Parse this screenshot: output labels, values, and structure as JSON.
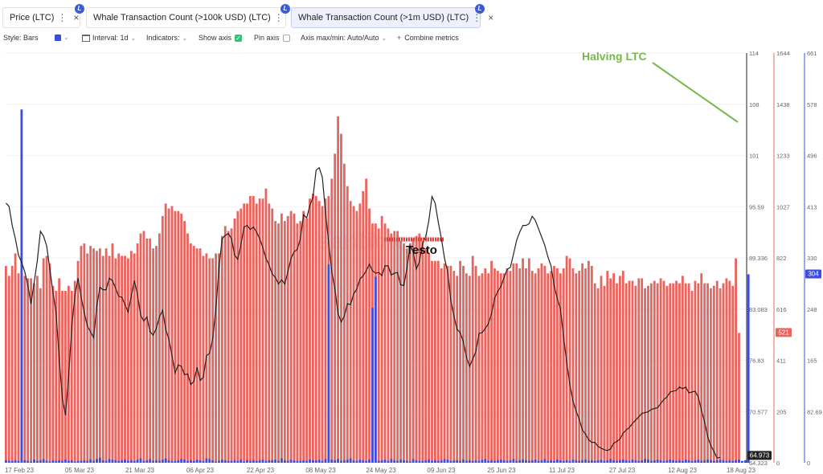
{
  "tabs": [
    {
      "label": "Price (LTC)",
      "color": "#222222",
      "badge": "L",
      "active": false
    },
    {
      "label": "Whale Transaction Count (>100k USD) (LTC)",
      "color": "#e8645e",
      "badge": "L",
      "active": false
    },
    {
      "label": "Whale Transaction Count (>1m USD) (LTC)",
      "color": "#3b4ee0",
      "badge": "L",
      "active": true
    }
  ],
  "toolbar": {
    "style_label": "Style: Bars",
    "interval_label": "Interval: 1d",
    "indicators_label": "Indicators:",
    "show_axis_label": "Show axis",
    "pin_axis_label": "Pin axis",
    "axis_label": "Axis max/min: Auto/Auto",
    "combine_label": "Combine metrics",
    "plus": "+"
  },
  "chart_data": {
    "type": "bar",
    "x_ticks": [
      "17 Feb 23",
      "05 Mar 23",
      "21 Mar 23",
      "06 Apr 23",
      "22 Apr 23",
      "08 May 23",
      "24 May 23",
      "09 Jun 23",
      "25 Jun 23",
      "11 Jul 23",
      "27 Jul 23",
      "12 Aug 23",
      "18 Aug 23"
    ],
    "axes": {
      "price": {
        "ticks": [
          "114",
          "108",
          "101",
          "95.59",
          "89.336",
          "83.083",
          "76.83",
          "70.577",
          "64.323"
        ],
        "min": 64.323,
        "max": 114,
        "current": "64.973",
        "color": "#222222"
      },
      "whale_100k": {
        "ticks": [
          "1644",
          "1438",
          "1233",
          "1027",
          "822",
          "616",
          "411",
          "205",
          "0"
        ],
        "min": 0,
        "max": 1644,
        "current": "521",
        "color": "#e8645e"
      },
      "whale_1m": {
        "ticks": [
          "661",
          "578",
          "496",
          "413",
          "330",
          "248",
          "165",
          "82.69",
          "0"
        ],
        "min": 0,
        "max": 661,
        "current": "304",
        "color": "#3b4ee0"
      }
    },
    "series": [
      {
        "name": "Price (LTC)",
        "type": "line",
        "color": "#222222",
        "values": [
          95.8,
          95.4,
          93.1,
          91.5,
          89.5,
          88.6,
          87.5,
          85.8,
          83.6,
          86.2,
          88.8,
          92.4,
          91.8,
          90.6,
          87.8,
          85,
          82.5,
          76.9,
          72.1,
          70.1,
          74.8,
          80.8,
          84.6,
          86.7,
          84.4,
          82.5,
          80.9,
          80.2,
          79.5,
          83.3,
          85.6,
          85.3,
          85.3,
          86.7,
          86.4,
          85.5,
          84.5,
          84.4,
          83.5,
          82.6,
          84.5,
          86.4,
          84.7,
          82.2,
          81.5,
          82,
          80.2,
          79.8,
          80.6,
          82,
          82.8,
          80.5,
          79.3,
          77.3,
          75.2,
          76.2,
          76,
          75,
          75.1,
          73.8,
          74.2,
          75.9,
          74.3,
          74.7,
          77.3,
          77.6,
          79.4,
          83,
          88,
          91.5,
          91.9,
          92.1,
          91.5,
          89.5,
          89,
          90.7,
          92.9,
          93.1,
          92.6,
          92.9,
          92.3,
          91.5,
          90.4,
          89.1,
          88.3,
          87.2,
          86.8,
          86,
          86.5,
          86,
          87.5,
          89.1,
          89.9,
          90.2,
          91.5,
          94.4,
          94,
          95.5,
          96.5,
          99.8,
          100.1,
          98.9,
          94.7,
          91,
          87.5,
          85.4,
          82.4,
          81.4,
          82.1,
          83.6,
          83.5,
          84.8,
          85.4,
          86.6,
          87,
          87.6,
          88.4,
          87.6,
          87.3,
          87.4,
          87,
          88.2,
          88.2,
          87.1,
          87.3,
          87.4,
          85.9,
          85.8,
          87.9,
          90.6,
          89.9,
          87.8,
          88.7,
          90.9,
          91.7,
          93.7,
          96.6,
          95.8,
          93.5,
          91.5,
          89.1,
          87.5,
          84,
          82.1,
          80.5,
          80.1,
          79,
          77.1,
          76,
          76.9,
          77.8,
          80,
          80.1,
          80.6,
          81.2,
          82.4,
          84.3,
          85.1,
          85.7,
          86.8,
          87.8,
          88,
          89.6,
          91.3,
          92.3,
          93.1,
          93.1,
          93.3,
          94.2,
          93.7,
          92.7,
          91.7,
          90.7,
          89.3,
          88.2,
          85.8,
          84.2,
          83,
          79.6,
          76.5,
          73.8,
          71.8,
          70.6,
          69.6,
          68.3,
          67.8,
          67.1,
          66.8,
          66.8,
          66.3,
          66.1,
          65.9,
          65.8,
          66,
          66.7,
          66.9,
          67.2,
          67.9,
          68.3,
          68.6,
          69.1,
          69.5,
          69.9,
          70.3,
          70.4,
          70.5,
          70.8,
          70.9,
          71,
          71.5,
          72,
          72.3,
          72.9,
          73,
          73.1,
          73.5,
          73.3,
          73.5,
          72.8,
          72.9,
          73,
          72.3,
          70.7,
          69.3,
          67.5,
          66.4,
          65.7,
          64.9,
          64.973
        ]
      },
      {
        "name": "Whale Transaction Count (>100k USD) (LTC)",
        "type": "bar",
        "color": "#e8645e",
        "values": [
          790,
          750,
          790,
          840,
          760,
          760,
          750,
          740,
          740,
          720,
          750,
          700,
          820,
          830,
          800,
          710,
          690,
          740,
          690,
          690,
          710,
          690,
          730,
          810,
          870,
          880,
          840,
          870,
          860,
          850,
          860,
          830,
          860,
          830,
          880,
          820,
          840,
          830,
          830,
          820,
          850,
          840,
          880,
          920,
          930,
          900,
          900,
          860,
          870,
          920,
          990,
          1040,
          1020,
          1030,
          1010,
          1010,
          1000,
          970,
          920,
          880,
          870,
          860,
          860,
          830,
          840,
          820,
          820,
          840,
          840,
          910,
          950,
          930,
          940,
          980,
          1010,
          1020,
          1040,
          1040,
          1070,
          1070,
          1040,
          1060,
          1060,
          1100,
          1040,
          1020,
          970,
          960,
          1000,
          970,
          990,
          1010,
          1000,
          960,
          970,
          1010,
          980,
          1060,
          1080,
          1070,
          1050,
          1030,
          1060,
          1070,
          1140,
          1240,
          1390,
          1320,
          1200,
          1110,
          1050,
          1030,
          1010,
          1040,
          1090,
          1140,
          1020,
          960,
          960,
          940,
          990,
          960,
          940,
          920,
          930,
          930,
          890,
          880,
          860,
          880,
          900,
          910,
          920,
          890,
          860,
          840,
          810,
          810,
          810,
          780,
          800,
          790,
          790,
          770,
          750,
          810,
          790,
          760,
          750,
          830,
          790,
          750,
          760,
          780,
          760,
          810,
          780,
          770,
          760,
          760,
          780,
          770,
          800,
          800,
          780,
          820,
          780,
          820,
          770,
          760,
          780,
          800,
          790,
          760,
          770,
          790,
          780,
          760,
          780,
          830,
          820,
          780,
          760,
          770,
          800,
          780,
          810,
          790,
          720,
          700,
          750,
          710,
          770,
          740,
          760,
          720,
          750,
          770,
          720,
          730,
          730,
          710,
          740,
          740,
          700,
          710,
          720,
          730,
          720,
          740,
          730,
          710,
          720,
          720,
          730,
          720,
          750,
          720,
          720,
          690,
          730,
          720,
          760,
          720,
          720,
          700,
          710,
          730,
          700,
          720,
          740,
          730,
          710,
          820,
          521
        ]
      },
      {
        "name": "Whale Transaction Count (>1m USD) (LTC)",
        "type": "bar",
        "color": "#3b4ee0",
        "values": [
          4,
          3,
          3,
          4,
          3,
          570,
          4,
          3,
          2,
          5,
          3,
          4,
          6,
          3,
          2,
          4,
          3,
          4,
          3,
          5,
          3,
          4,
          2,
          3,
          3,
          4,
          3,
          5,
          3,
          6,
          8,
          4,
          3,
          6,
          5,
          4,
          3,
          4,
          5,
          3,
          4,
          3,
          5,
          7,
          3,
          4,
          6,
          3,
          4,
          3,
          5,
          7,
          4,
          3,
          3,
          4,
          6,
          5,
          3,
          4,
          3,
          5,
          4,
          3,
          7,
          6,
          4,
          2,
          3,
          5,
          4,
          3,
          3,
          4,
          3,
          5,
          2,
          4,
          3,
          4,
          3,
          4,
          5,
          3,
          4,
          4,
          5,
          3,
          7,
          4,
          3,
          5,
          4,
          3,
          3,
          4,
          3,
          5,
          4,
          4,
          5,
          3,
          6,
          320,
          5,
          4,
          6,
          3,
          4,
          5,
          7,
          4,
          3,
          5,
          4,
          3,
          5,
          250,
          300,
          3,
          4,
          5,
          3,
          6,
          4,
          3,
          5,
          4,
          3,
          2,
          6,
          4,
          3,
          3,
          4,
          5,
          3,
          4,
          3,
          4,
          6,
          5,
          3,
          4,
          4,
          3,
          5,
          3,
          4,
          3,
          4,
          3,
          5,
          6,
          3,
          4,
          3,
          4,
          5,
          4,
          3,
          4,
          6,
          3,
          4,
          5,
          4,
          3,
          4,
          5,
          3,
          4,
          6,
          3,
          4,
          3,
          5,
          4,
          3,
          4,
          3,
          5,
          4,
          3,
          4,
          5,
          3,
          4,
          3,
          4,
          5,
          3,
          4,
          6,
          4,
          3,
          4,
          5,
          4,
          3,
          5,
          4,
          3,
          4,
          6,
          5,
          3,
          4,
          5,
          4,
          3,
          4,
          5,
          4,
          3,
          4,
          3,
          5,
          4,
          3,
          4,
          5,
          3,
          4,
          5,
          4,
          3,
          4,
          5,
          4,
          3,
          4,
          3,
          4,
          5,
          3,
          4,
          304
        ]
      }
    ],
    "annotations": [
      {
        "text": "Testo",
        "color": "#111111"
      },
      {
        "text": "Halving LTC",
        "color": "#78b84a"
      }
    ],
    "watermark": "santiment"
  }
}
